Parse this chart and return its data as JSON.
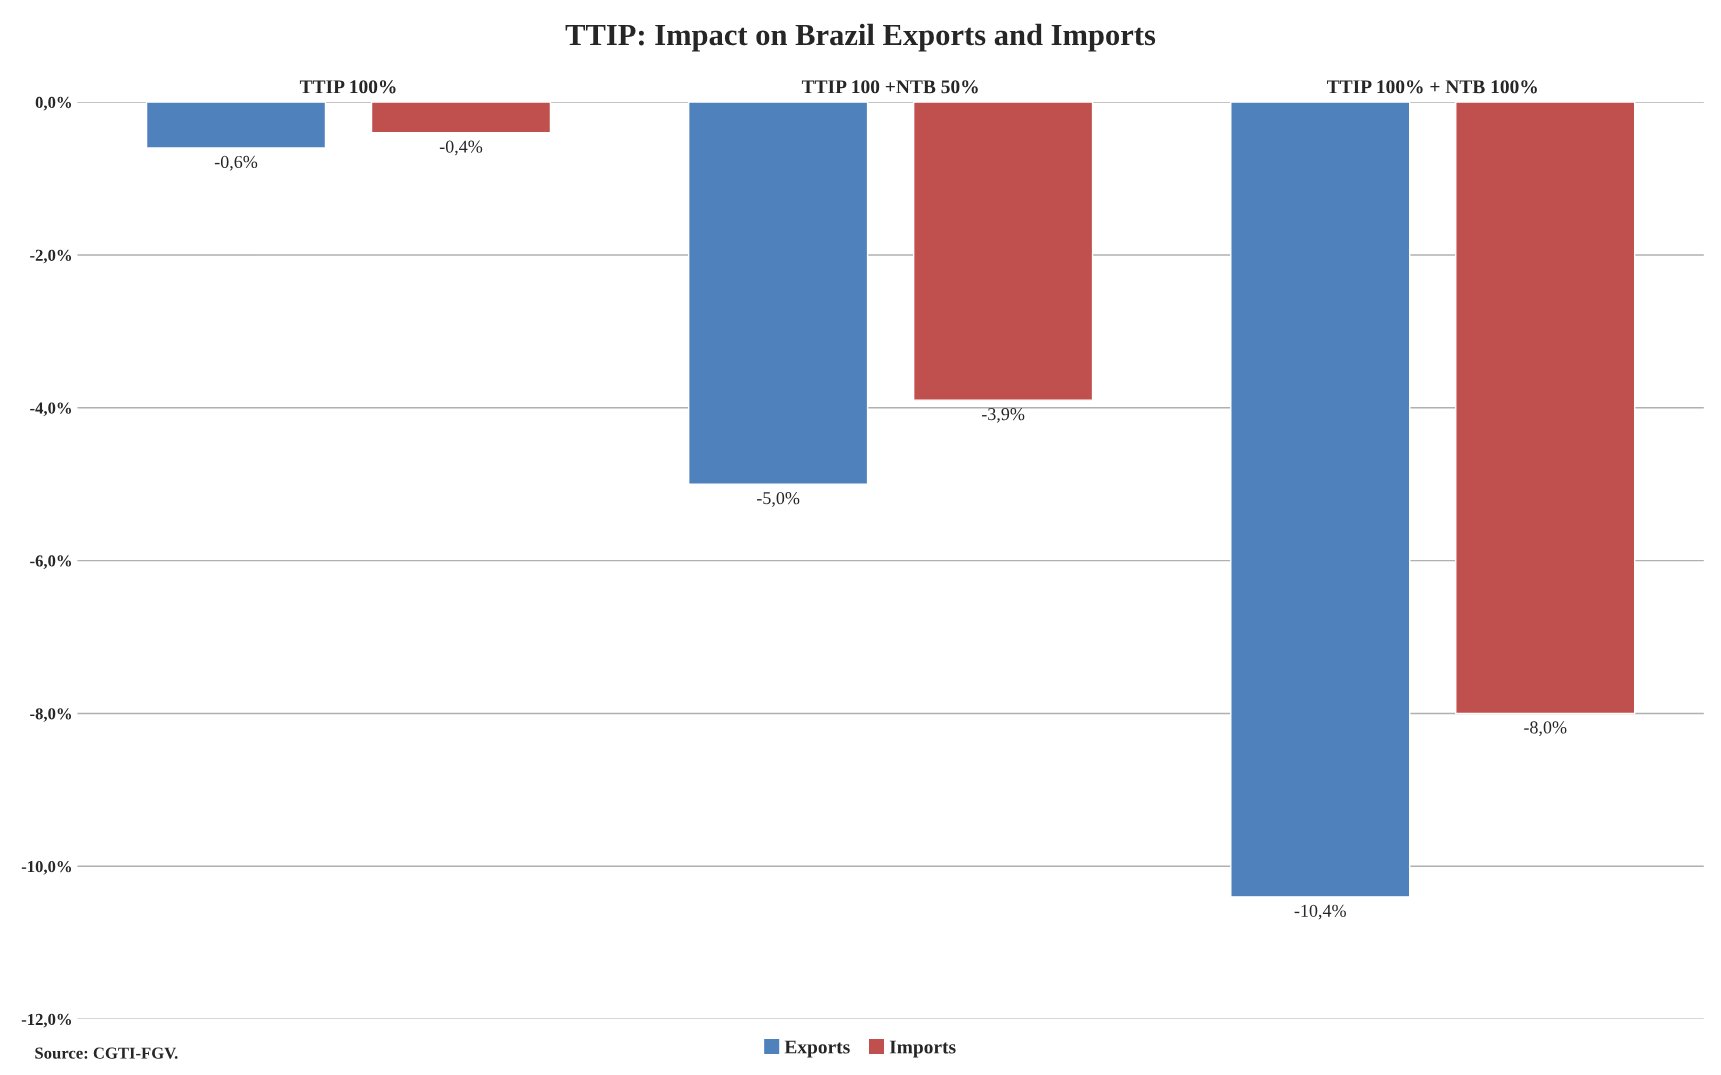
{
  "chart_data": {
    "type": "bar",
    "title": "TTIP: Impact on Brazil Exports and Imports",
    "categories": [
      "TTIP 100%",
      "TTIP 100 +NTB 50%",
      "TTIP 100% + NTB 100%"
    ],
    "series": [
      {
        "name": "Exports",
        "color": "#4f81bd",
        "values": [
          -0.6,
          -5.0,
          -10.4
        ],
        "value_labels": [
          "-0,6%",
          "-5,0%",
          "-10,4%"
        ]
      },
      {
        "name": "Imports",
        "color": "#c0504d",
        "values": [
          -0.4,
          -3.9,
          -8.0
        ],
        "value_labels": [
          "-0,4%",
          "-3,9%",
          "-8,0%"
        ]
      }
    ],
    "ylim": [
      -12,
      0
    ],
    "yticks": [
      {
        "value": 0,
        "label": "0,0%"
      },
      {
        "value": -2,
        "label": "-2,0%"
      },
      {
        "value": -4,
        "label": "-4,0%"
      },
      {
        "value": -6,
        "label": "-6,0%"
      },
      {
        "value": -8,
        "label": "-8,0%"
      },
      {
        "value": -10,
        "label": "-10,0%"
      },
      {
        "value": -12,
        "label": "-12,0%"
      }
    ],
    "grid": "y",
    "legend": "bottom",
    "annotations": [
      "Source: CGTI-FGV."
    ]
  }
}
